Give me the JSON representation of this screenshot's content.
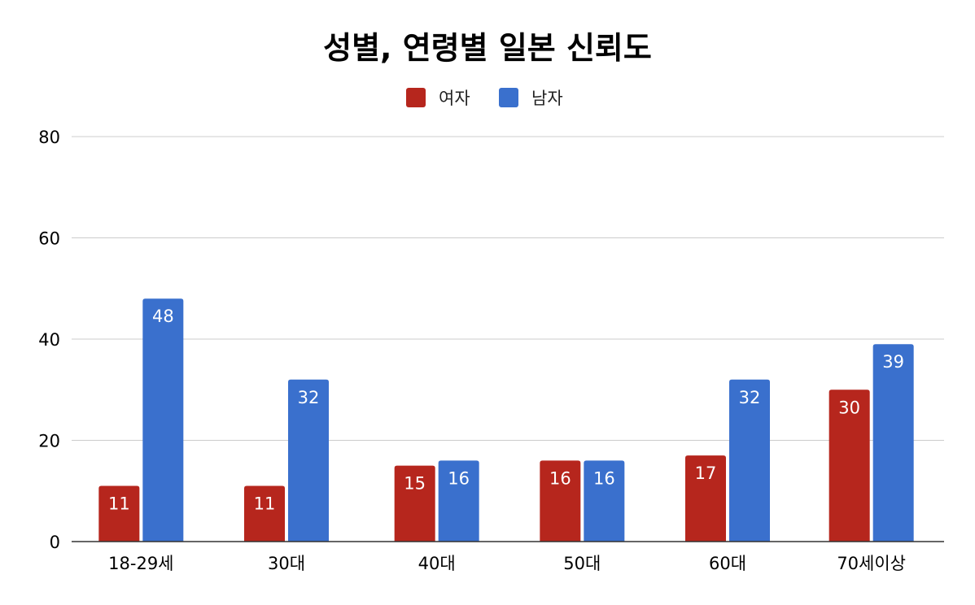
{
  "chart_data": {
    "type": "bar",
    "title": "성별, 연령별 일본 신뢰도",
    "categories": [
      "18-29세",
      "30대",
      "40대",
      "50대",
      "60대",
      "70세이상"
    ],
    "series": [
      {
        "name": "여자",
        "color": "#b6261d",
        "values": [
          11,
          11,
          15,
          16,
          17,
          30
        ]
      },
      {
        "name": "남자",
        "color": "#3a70cd",
        "values": [
          48,
          32,
          16,
          16,
          32,
          39
        ]
      }
    ],
    "ylim": [
      0,
      80
    ],
    "yticks": [
      0,
      20,
      40,
      60,
      80
    ],
    "xlabel": "",
    "ylabel": "",
    "grid": true,
    "legend_position": "top-center",
    "data_labels": "inside-top"
  }
}
